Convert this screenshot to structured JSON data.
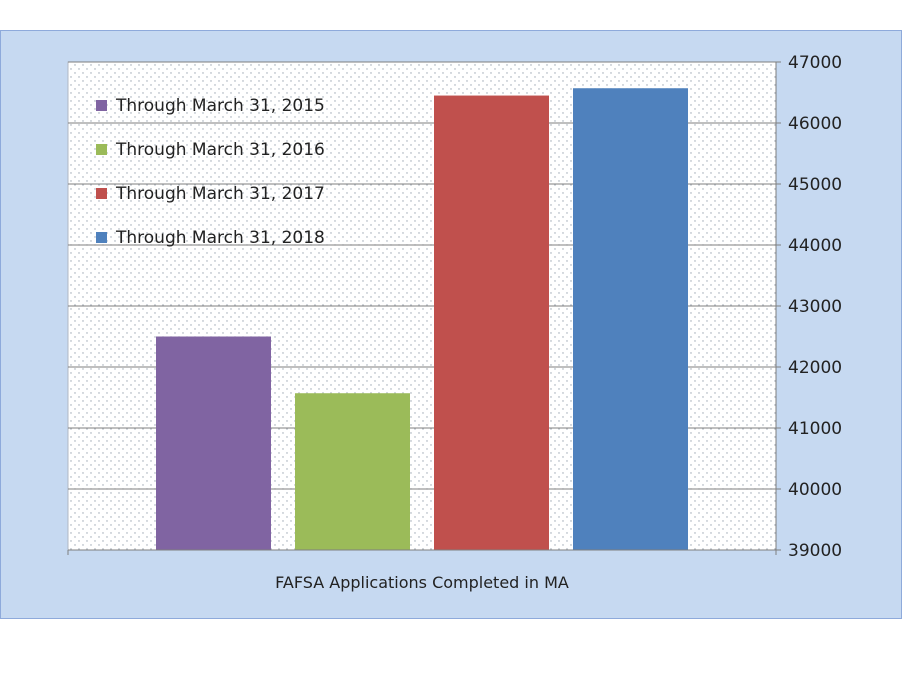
{
  "chart_data": {
    "type": "bar",
    "xlabel": "FAFSA Applications Completed in MA",
    "ylabel": "",
    "ylim": [
      39000,
      47000
    ],
    "yticks": [
      39000,
      40000,
      41000,
      42000,
      43000,
      44000,
      45000,
      46000,
      47000
    ],
    "y_axis_side": "right",
    "grid": true,
    "legend_position": "top-left",
    "series": [
      {
        "name": "Through March 31, 2015",
        "value": 42500,
        "color": "#8064a2"
      },
      {
        "name": "Through March 31, 2016",
        "value": 41570,
        "color": "#9bbb59"
      },
      {
        "name": "Through March 31, 2017",
        "value": 46450,
        "color": "#c0504d"
      },
      {
        "name": "Through March 31, 2018",
        "value": 46570,
        "color": "#4f81bd"
      }
    ]
  }
}
